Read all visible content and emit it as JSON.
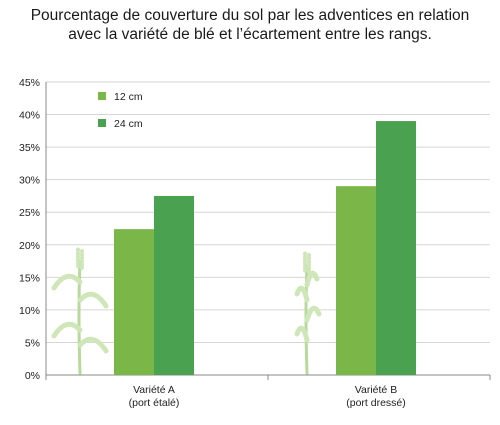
{
  "chart_data": {
    "type": "bar",
    "title": [
      "Pourcentage de couverture du sol par les adventices en relation",
      "avec la variété de blé et l’écartement entre les rangs."
    ],
    "categories": [
      [
        "Variété A",
        "(port étalé)"
      ],
      [
        "Variété B",
        "(port dressé)"
      ]
    ],
    "series": [
      {
        "name": "12 cm",
        "color": "#7ab648",
        "values": [
          22.4,
          29.0
        ]
      },
      {
        "name": "24 cm",
        "color": "#4aa150",
        "values": [
          27.5,
          39.0
        ]
      }
    ],
    "ylim": [
      0,
      45
    ],
    "yticks": [
      "0%",
      "5%",
      "10%",
      "15%",
      "20%",
      "25%",
      "30%",
      "35%",
      "40%",
      "45%"
    ],
    "grid": true,
    "legend": "top-left",
    "decoration": "wheat-plant-icon"
  }
}
